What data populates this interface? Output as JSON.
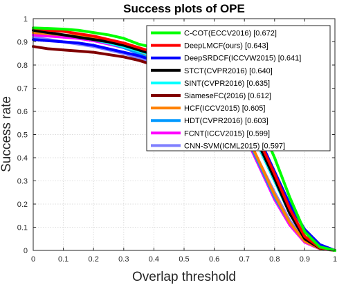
{
  "chart_data": {
    "type": "line",
    "title": "Success plots of OPE",
    "xlabel": "Overlap threshold",
    "ylabel": "Success rate",
    "xlim": [
      0,
      1
    ],
    "ylim": [
      0,
      1
    ],
    "xticks": [
      "0",
      "0.1",
      "0.2",
      "0.3",
      "0.4",
      "0.5",
      "0.6",
      "0.7",
      "0.8",
      "0.9",
      "1"
    ],
    "yticks": [
      "0",
      "0.1",
      "0.2",
      "0.3",
      "0.4",
      "0.5",
      "0.6",
      "0.7",
      "0.8",
      "0.9",
      "1"
    ],
    "grid": true,
    "legend_position": "top-right",
    "x": [
      0,
      0.05,
      0.1,
      0.15,
      0.2,
      0.25,
      0.3,
      0.35,
      0.4,
      0.45,
      0.5,
      0.55,
      0.6,
      0.65,
      0.7,
      0.75,
      0.8,
      0.85,
      0.9,
      0.95,
      1
    ],
    "series": [
      {
        "name": "C-COT(ECCV2016) [0.672]",
        "color": "#00ff00",
        "values": [
          0.96,
          0.958,
          0.955,
          0.95,
          0.94,
          0.93,
          0.915,
          0.89,
          0.875,
          0.86,
          0.845,
          0.82,
          0.79,
          0.76,
          0.69,
          0.55,
          0.4,
          0.23,
          0.08,
          0.015,
          0
        ]
      },
      {
        "name": "DeepLMCF(ours) [0.643]",
        "color": "#ff0000",
        "values": [
          0.96,
          0.95,
          0.945,
          0.935,
          0.925,
          0.91,
          0.895,
          0.875,
          0.855,
          0.835,
          0.81,
          0.78,
          0.74,
          0.68,
          0.6,
          0.47,
          0.33,
          0.18,
          0.06,
          0.012,
          0
        ]
      },
      {
        "name": "DeepSRDCF(ICCVW2015) [0.641]",
        "color": "#0000ff",
        "values": [
          0.91,
          0.905,
          0.9,
          0.895,
          0.885,
          0.87,
          0.855,
          0.84,
          0.82,
          0.8,
          0.775,
          0.745,
          0.71,
          0.66,
          0.59,
          0.48,
          0.34,
          0.2,
          0.09,
          0.025,
          0
        ]
      },
      {
        "name": "STCT(CVPR2016) [0.640]",
        "color": "#000000",
        "values": [
          0.95,
          0.94,
          0.93,
          0.92,
          0.91,
          0.9,
          0.885,
          0.865,
          0.845,
          0.825,
          0.8,
          0.77,
          0.73,
          0.67,
          0.58,
          0.45,
          0.31,
          0.16,
          0.05,
          0.01,
          0
        ]
      },
      {
        "name": "SINT(CVPR2016) [0.635]",
        "color": "#00ffff",
        "values": [
          0.95,
          0.94,
          0.93,
          0.92,
          0.91,
          0.895,
          0.88,
          0.86,
          0.84,
          0.82,
          0.79,
          0.76,
          0.72,
          0.66,
          0.57,
          0.44,
          0.3,
          0.16,
          0.055,
          0.01,
          0
        ]
      },
      {
        "name": "SiameseFC(2016) [0.612]",
        "color": "#800000",
        "values": [
          0.88,
          0.87,
          0.865,
          0.86,
          0.855,
          0.845,
          0.835,
          0.82,
          0.8,
          0.78,
          0.755,
          0.725,
          0.69,
          0.64,
          0.56,
          0.44,
          0.3,
          0.17,
          0.06,
          0.012,
          0
        ]
      },
      {
        "name": "HCF(ICCV2015) [0.605]",
        "color": "#ff8000",
        "values": [
          0.94,
          0.935,
          0.93,
          0.925,
          0.915,
          0.9,
          0.88,
          0.86,
          0.835,
          0.81,
          0.775,
          0.735,
          0.68,
          0.61,
          0.52,
          0.38,
          0.24,
          0.12,
          0.04,
          0.008,
          0
        ]
      },
      {
        "name": "HDT(CVPR2016) [0.603]",
        "color": "#0099ff",
        "values": [
          0.94,
          0.935,
          0.93,
          0.92,
          0.91,
          0.895,
          0.875,
          0.85,
          0.825,
          0.8,
          0.765,
          0.725,
          0.67,
          0.6,
          0.51,
          0.37,
          0.23,
          0.12,
          0.04,
          0.008,
          0
        ]
      },
      {
        "name": "FCNT(ICCV2015) [0.599]",
        "color": "#ff00ff",
        "values": [
          0.93,
          0.925,
          0.92,
          0.915,
          0.905,
          0.89,
          0.875,
          0.85,
          0.825,
          0.8,
          0.77,
          0.73,
          0.675,
          0.6,
          0.5,
          0.36,
          0.22,
          0.11,
          0.035,
          0.007,
          0
        ]
      },
      {
        "name": "CNN-SVM(ICML2015) [0.597]",
        "color": "#8080ff",
        "values": [
          0.92,
          0.91,
          0.9,
          0.89,
          0.88,
          0.865,
          0.85,
          0.83,
          0.81,
          0.785,
          0.755,
          0.72,
          0.67,
          0.6,
          0.51,
          0.38,
          0.25,
          0.13,
          0.045,
          0.009,
          0
        ]
      }
    ]
  }
}
